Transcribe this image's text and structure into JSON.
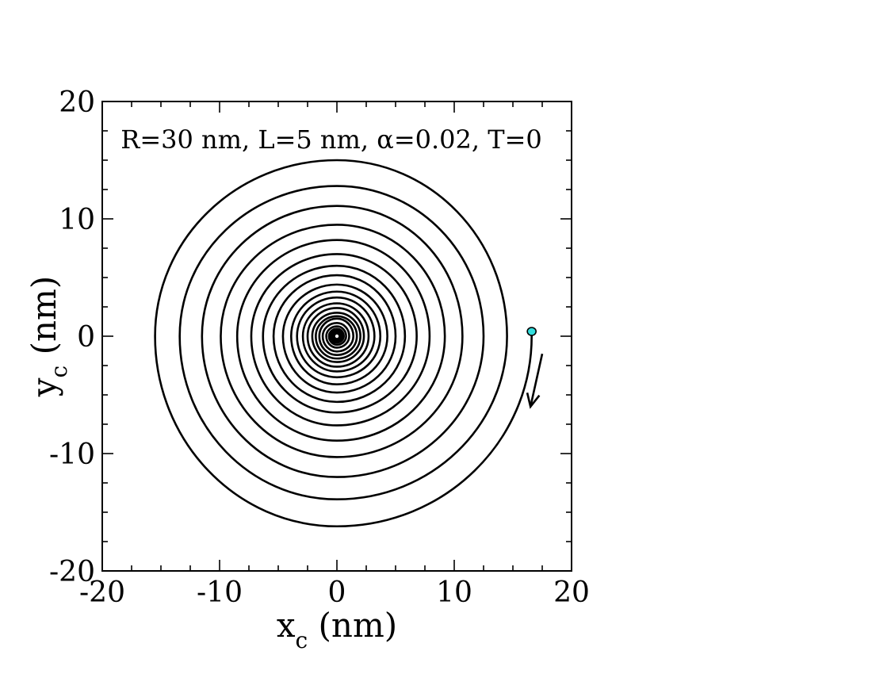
{
  "chart_data": {
    "type": "line",
    "annotation": "R=30 nm, L=5 nm, α=0.02, T=0",
    "xlabel": {
      "main": "x",
      "sub": "c",
      "unit": " (nm)"
    },
    "ylabel": {
      "main": "y",
      "sub": "c",
      "unit": " (nm)"
    },
    "xlim": [
      -20,
      20
    ],
    "ylim": [
      -20,
      20
    ],
    "xticks": [
      -20,
      -10,
      0,
      10,
      20
    ],
    "yticks": [
      -20,
      -10,
      0,
      10,
      20
    ],
    "xtick_labels": [
      "-20",
      "-10",
      "0",
      "10",
      "20"
    ],
    "ytick_labels": [
      "-20",
      "-10",
      "0",
      "10",
      "20"
    ],
    "grid": false,
    "series": [
      {
        "trajectory": "spiral",
        "start": {
          "x": 16.6,
          "y": 0.0
        },
        "end": {
          "x": 0.0,
          "y": 0.0
        },
        "direction": "clockwise",
        "crossings_y_negative": [
          -16.2,
          -13.9,
          -12.0,
          -10.3,
          -8.9,
          -7.6,
          -6.5,
          -5.6,
          -4.8,
          -4.1,
          -3.5,
          -3.0,
          -2.6,
          -2.2,
          -1.9,
          -1.6,
          -1.4,
          -1.2
        ],
        "crossings_x_negative": [
          -15.5,
          -13.4,
          -11.5,
          -9.9,
          -8.5,
          -7.3,
          -6.3,
          -5.4,
          -4.6,
          -3.9,
          -3.4,
          -2.9,
          -2.5,
          -2.1,
          -1.8,
          -1.5
        ],
        "crossings_y_positive": [
          15.0,
          12.8,
          11.1,
          9.5,
          8.2,
          7.0,
          6.0,
          5.2,
          4.4,
          3.8,
          3.3,
          2.8,
          2.4,
          2.0,
          1.7,
          1.5
        ],
        "crossings_x_positive": [
          14.5,
          12.5,
          10.7,
          9.2,
          7.9,
          6.8,
          5.8,
          5.0,
          4.3,
          3.7,
          3.2,
          2.7,
          2.3,
          2.0,
          1.7,
          1.4
        ]
      }
    ],
    "start_marker_color": "#33dddd",
    "end_marker_color": "#ffffff",
    "line_color": "#000000",
    "arrow": {
      "from": {
        "x": 17.5,
        "y": -1.5
      },
      "to": {
        "x": 16.5,
        "y": -6.0
      }
    }
  }
}
